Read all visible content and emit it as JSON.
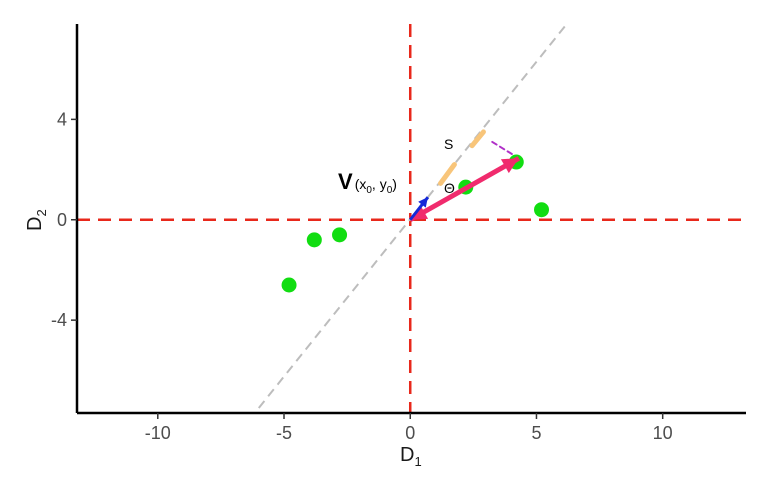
{
  "chart_data": {
    "type": "scatter",
    "title": "",
    "xlabel": "D",
    "xlabel_sub": "1",
    "ylabel": "D",
    "ylabel_sub": "2",
    "xlim": [
      -13.2,
      13.3
    ],
    "ylim": [
      -7.7,
      7.8
    ],
    "xticks": [
      -10,
      -5,
      0,
      5,
      10
    ],
    "xtick_labels": [
      "-10",
      "-5",
      "0",
      "5",
      "10"
    ],
    "yticks": [
      -4,
      0,
      4
    ],
    "ytick_labels": [
      "-4",
      "0",
      "4"
    ],
    "grid": false,
    "series": [
      {
        "color": "#11dd11",
        "x": [
          -4.8,
          -3.8,
          -2.8,
          2.2,
          4.2,
          5.2
        ],
        "y": [
          -2.6,
          -0.8,
          -0.6,
          1.3,
          2.3,
          0.4
        ]
      }
    ],
    "reference_lines": [
      {
        "kind": "vline",
        "x": 0,
        "color": "#e8281b",
        "style": "dashed"
      },
      {
        "kind": "hline",
        "y": 0,
        "color": "#e8281b",
        "style": "dashed"
      },
      {
        "kind": "diagonal",
        "from": [
          -6,
          -7.5
        ],
        "to": [
          6.2,
          7.8
        ],
        "color": "#bdbdbd",
        "style": "dashed"
      }
    ],
    "vectors": [
      {
        "name": "pink-arrow",
        "from": [
          0,
          0
        ],
        "to": [
          4.3,
          2.45
        ],
        "color": "#f02b6d",
        "width": 5
      },
      {
        "name": "blue-arrow",
        "from": [
          0,
          0
        ],
        "to": [
          0.7,
          0.9
        ],
        "color": "#1428d8",
        "width": 3
      }
    ],
    "segments": [
      {
        "name": "orange-dash",
        "from": [
          1.2,
          1.45
        ],
        "to": [
          1.75,
          2.2
        ],
        "color": "#f8c57a",
        "width": 5
      },
      {
        "name": "orange-dash",
        "from": [
          2.45,
          2.95
        ],
        "to": [
          2.9,
          3.5
        ],
        "color": "#f8c57a",
        "width": 5
      },
      {
        "name": "magenta-dash",
        "from": [
          3.25,
          3.1
        ],
        "to": [
          4.3,
          2.45
        ],
        "color": "#b030c8",
        "width": 2,
        "style": "dashed"
      }
    ],
    "annotations": {
      "vector_label": {
        "main": "V",
        "paren_open": "(x",
        "sub0": "0",
        "comma": ", y",
        "sub1": "0",
        "paren_close": ")"
      },
      "s_label": "S",
      "theta_label": "Θ"
    }
  }
}
